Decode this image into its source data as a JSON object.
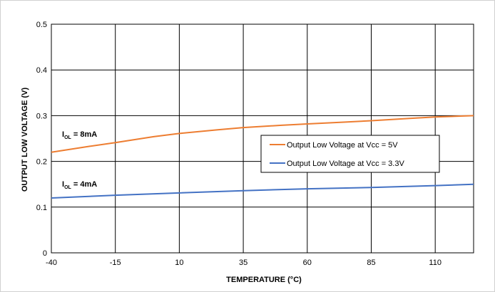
{
  "chart_data": {
    "type": "line",
    "xlabel": "TEMPERATURE (°C)",
    "ylabel": "OUTPUT LOW VOLTAGE (V)",
    "xlim": [
      -40,
      125
    ],
    "ylim": [
      0,
      0.5
    ],
    "x_ticks": [
      "-40",
      "-15",
      "10",
      "35",
      "60",
      "85",
      "110"
    ],
    "y_ticks": [
      "0",
      "0.1",
      "0.2",
      "0.3",
      "0.4",
      "0.5"
    ],
    "grid": true,
    "legend_position": "center-right",
    "series": [
      {
        "name": "Output Low Voltage at Vcc = 5V",
        "color": "#ED7D31",
        "x": [
          -40,
          -25,
          -15,
          0,
          10,
          25,
          35,
          50,
          60,
          75,
          85,
          100,
          110,
          125
        ],
        "y": [
          0.22,
          0.233,
          0.241,
          0.254,
          0.261,
          0.269,
          0.274,
          0.279,
          0.282,
          0.286,
          0.289,
          0.294,
          0.297,
          0.3
        ]
      },
      {
        "name": "Output Low Voltage at Vcc = 3.3V",
        "color": "#4472C4",
        "x": [
          -40,
          -15,
          10,
          35,
          60,
          85,
          110,
          125
        ],
        "y": [
          0.12,
          0.126,
          0.131,
          0.136,
          0.14,
          0.143,
          0.147,
          0.15
        ]
      }
    ],
    "annotations": [
      {
        "main": "I",
        "sub": "OL",
        "rest": " = 8mA"
      },
      {
        "main": "I",
        "sub": "OL",
        "rest": " = 4mA"
      }
    ]
  }
}
